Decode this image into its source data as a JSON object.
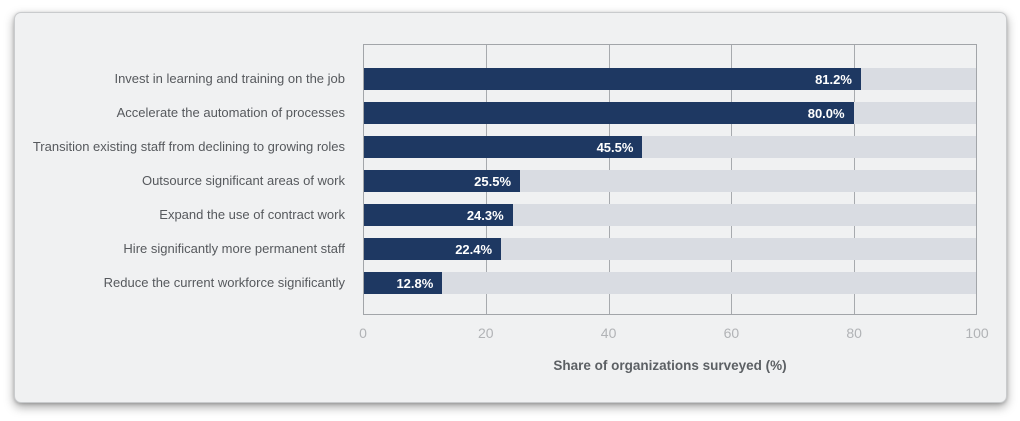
{
  "chart_data": {
    "type": "bar",
    "orientation": "horizontal",
    "title": "",
    "xlabel": "Share of organizations surveyed (%)",
    "ylabel": "",
    "categories": [
      "Invest in learning and training on the job",
      "Accelerate the automation of processes",
      "Transition existing staff from declining to growing roles",
      "Outsource significant areas of work",
      "Expand the use of contract work",
      "Hire significantly more permanent staff",
      "Reduce the current workforce significantly"
    ],
    "values": [
      81.2,
      80.0,
      45.5,
      25.5,
      24.3,
      22.4,
      12.8
    ],
    "value_labels": [
      "81.2%",
      "80.0%",
      "45.5%",
      "25.5%",
      "24.3%",
      "22.4%",
      "12.8%"
    ],
    "xlim": [
      0,
      100
    ],
    "xticks": [
      0,
      20,
      40,
      60,
      80,
      100
    ],
    "grid": "vertical-only",
    "legend": "none",
    "bar_background_track": "full-width"
  },
  "colors": {
    "bar": "#1e3862",
    "bar_track": "#d9dce2",
    "panel_bg": "#f0f1f2",
    "plot_bg": "#f0f1f2",
    "grid_line": "#a7aaae",
    "plot_border": "#a2a5a9",
    "category_label": "#56595d",
    "tick_label": "#b1b3b6",
    "axis_title": "#5c6064",
    "value_label": "#ffffff"
  }
}
